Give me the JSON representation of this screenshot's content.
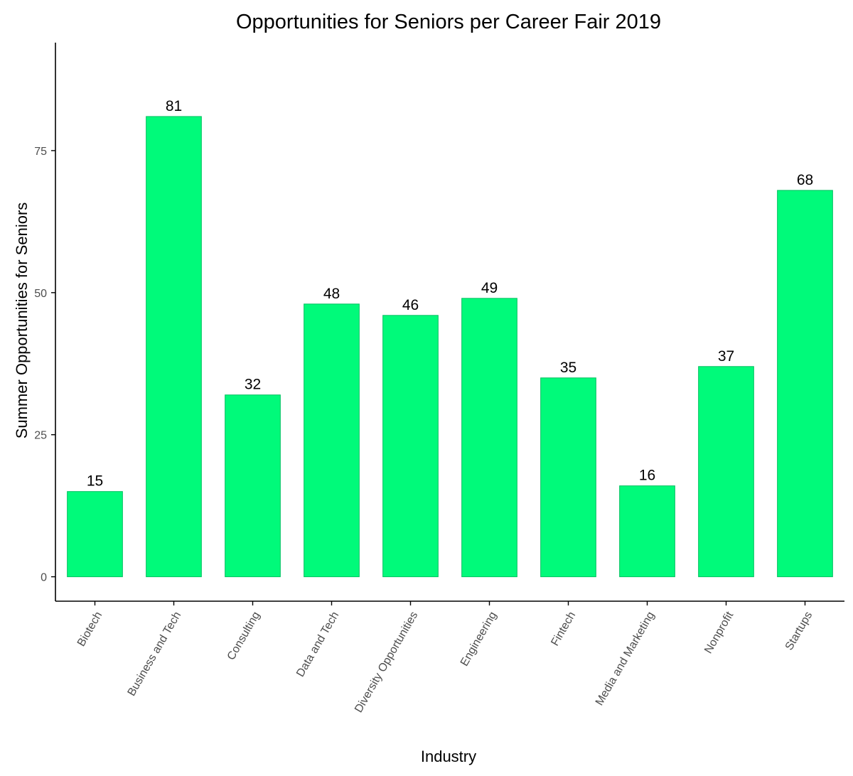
{
  "chart_data": {
    "type": "bar",
    "title": "Opportunities for Seniors per Career Fair 2019",
    "xlabel": "Industry",
    "ylabel": "Summer Opportunities for Seniors",
    "categories": [
      "Biotech",
      "Business and Tech",
      "Consulting",
      "Data and Tech",
      "Diversity Opportunities",
      "Engineering",
      "Fintech",
      "Media and Marketing",
      "Nonprofit",
      "Startups"
    ],
    "values": [
      15,
      81,
      32,
      48,
      46,
      49,
      35,
      16,
      37,
      68
    ],
    "data_labels": [
      "15",
      "81",
      "32",
      "48",
      "46",
      "49",
      "35",
      "16",
      "37",
      "68"
    ],
    "ylim": [
      -4.3,
      94
    ],
    "yticks": [
      0,
      25,
      50,
      75
    ],
    "ytick_labels": [
      "0",
      "25",
      "50",
      "75"
    ],
    "grid": false,
    "legend": "none",
    "colors": {
      "bar_fill": "#00FA7A",
      "bar_stroke": "#00C060",
      "axis": "#000000",
      "tick_text": "#4d4d4d"
    }
  }
}
